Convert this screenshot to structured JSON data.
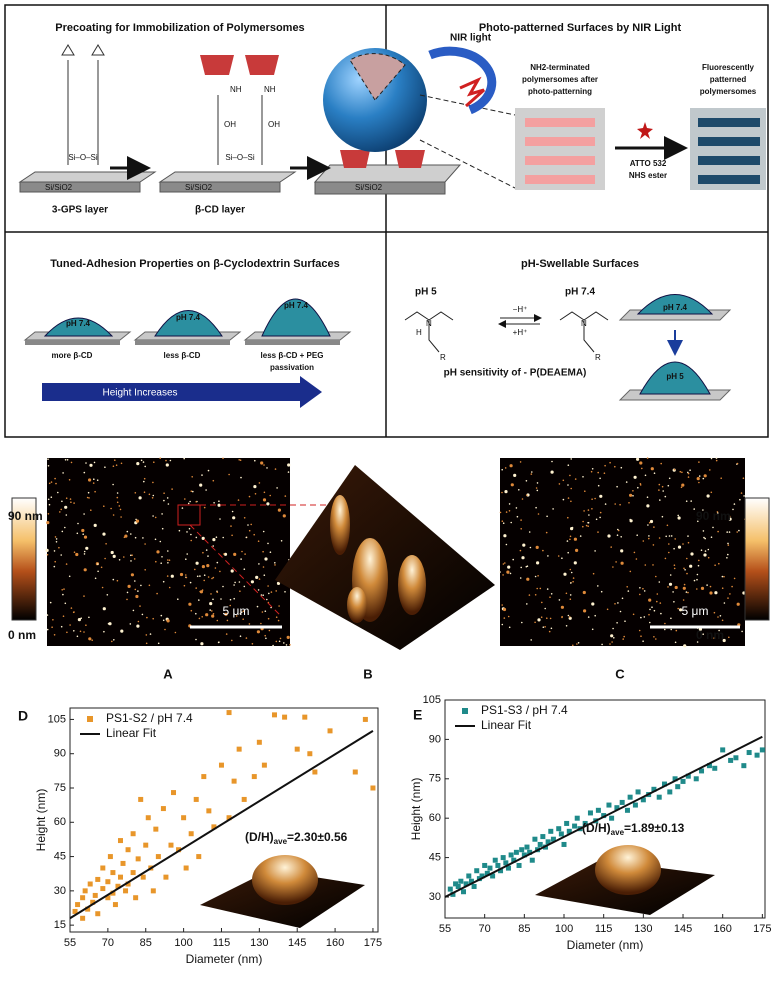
{
  "schematic": {
    "panels": [
      {
        "title": "Precoating for Immobilization of Polymersomes",
        "labels": [
          "Si/SiO2",
          "3-GPS layer",
          "Si/SiO2",
          "β-CD layer",
          "Si/SiO2",
          "Si–O–Si",
          "Si–O–Si",
          "NH",
          "NH",
          "OH",
          "OH"
        ]
      },
      {
        "title": "Photo-patterned Surfaces by NIR Light",
        "labels": [
          "NIR light",
          "NH2-terminated",
          "polymersomes after",
          "photo-patterning",
          "ATTO 532",
          "NHS ester",
          "Fluorescently",
          "patterned",
          "polymersomes"
        ]
      },
      {
        "title": "Tuned-Adhesion Properties on β-Cyclodextrin Surfaces",
        "labels": [
          "pH 7.4",
          "pH 7.4",
          "pH 7.4",
          "more β-CD",
          "less β-CD",
          "less β-CD + PEG",
          "passivation",
          "Height Increases"
        ]
      },
      {
        "title": "pH-Swellable Surfaces",
        "labels": [
          "pH 5",
          "pH 7.4",
          "−H⁺",
          "+H⁺",
          "pH sensitivity of - P(DEAEMA)",
          "pH 7.4",
          "pH 5",
          "N",
          "N",
          "H",
          "R",
          "R"
        ]
      }
    ]
  },
  "afm": {
    "colorbar_top": "90 nm",
    "colorbar_bottom": "0 nm",
    "scale_bar": "5 μm",
    "panel_labels": [
      "A",
      "B",
      "C"
    ]
  },
  "chart_data": [
    {
      "type": "scatter",
      "label": "D",
      "x_label": "Diameter (nm)",
      "y_label": "Height (nm)",
      "xlim": [
        55,
        177
      ],
      "ylim": [
        12,
        110
      ],
      "xticks": [
        55,
        70,
        85,
        100,
        115,
        130,
        145,
        160,
        175
      ],
      "yticks": [
        15,
        30,
        45,
        60,
        75,
        90,
        105
      ],
      "annotation": {
        "text": "(D/H)",
        "sub": "ave",
        "suffix": "=2.30±0.56"
      },
      "series": [
        {
          "name": "PS1-S2 / pH 7.4",
          "color": "#e8962a",
          "kind": "points",
          "x": [
            57,
            58,
            60,
            60,
            61,
            62,
            63,
            64,
            65,
            66,
            66,
            68,
            68,
            70,
            70,
            71,
            72,
            72,
            73,
            74,
            75,
            75,
            76,
            77,
            78,
            78,
            80,
            80,
            81,
            82,
            83,
            84,
            85,
            86,
            87,
            88,
            89,
            90,
            92,
            93,
            95,
            96,
            98,
            100,
            101,
            103,
            105,
            106,
            108,
            110,
            112,
            115,
            118,
            120,
            122,
            124,
            128,
            130,
            132,
            136,
            140,
            145,
            150,
            152,
            158,
            168,
            172,
            175,
            148,
            118
          ],
          "values": [
            21,
            24,
            18,
            27,
            30,
            22,
            33,
            25,
            28,
            20,
            35,
            31,
            40,
            27,
            34,
            45,
            29,
            38,
            24,
            32,
            52,
            36,
            42,
            30,
            48,
            33,
            38,
            55,
            27,
            44,
            70,
            36,
            50,
            62,
            40,
            30,
            57,
            45,
            66,
            36,
            50,
            73,
            48,
            62,
            40,
            55,
            70,
            45,
            80,
            65,
            58,
            85,
            62,
            78,
            92,
            70,
            80,
            95,
            85,
            107,
            106,
            92,
            90,
            82,
            100,
            82,
            105,
            75,
            106,
            108
          ]
        },
        {
          "name": "Linear Fit",
          "color": "#111111",
          "kind": "line",
          "x": [
            55,
            175
          ],
          "values": [
            18,
            100
          ]
        }
      ]
    },
    {
      "type": "scatter",
      "label": "E",
      "x_label": "Diameter (nm)",
      "y_label": "Height (nm)",
      "xlim": [
        55,
        176
      ],
      "ylim": [
        22,
        105
      ],
      "xticks": [
        55,
        70,
        85,
        100,
        115,
        130,
        145,
        160,
        175
      ],
      "yticks": [
        30,
        45,
        60,
        75,
        90,
        105
      ],
      "annotation": {
        "text": "(D/H)",
        "sub": "ave",
        "suffix": "=1.89±0.13"
      },
      "series": [
        {
          "name": "PS1-S3 / pH 7.4",
          "color": "#1f8a8a",
          "kind": "points",
          "x": [
            57,
            58,
            59,
            60,
            61,
            62,
            63,
            64,
            65,
            66,
            67,
            68,
            69,
            70,
            71,
            72,
            73,
            74,
            75,
            76,
            77,
            78,
            79,
            80,
            81,
            82,
            83,
            84,
            85,
            86,
            87,
            88,
            89,
            90,
            91,
            92,
            93,
            94,
            95,
            96,
            98,
            99,
            100,
            101,
            102,
            104,
            105,
            106,
            108,
            110,
            112,
            113,
            115,
            117,
            118,
            120,
            122,
            124,
            125,
            127,
            128,
            130,
            132,
            134,
            136,
            138,
            140,
            142,
            143,
            145,
            147,
            150,
            152,
            155,
            157,
            160,
            163,
            165,
            168,
            170,
            173,
            175
          ],
          "values": [
            33,
            31,
            35,
            34,
            36,
            32,
            35,
            38,
            36,
            34,
            40,
            37,
            38,
            42,
            39,
            41,
            38,
            44,
            42,
            40,
            45,
            43,
            41,
            46,
            44,
            47,
            42,
            48,
            46,
            49,
            47,
            44,
            52,
            48,
            50,
            53,
            49,
            51,
            55,
            52,
            56,
            54,
            50,
            58,
            55,
            57,
            60,
            56,
            58,
            62,
            59,
            63,
            61,
            65,
            60,
            64,
            66,
            63,
            68,
            65,
            70,
            67,
            69,
            71,
            68,
            73,
            70,
            75,
            72,
            74,
            76,
            75,
            78,
            80,
            79,
            86,
            82,
            83,
            80,
            85,
            84,
            86
          ]
        },
        {
          "name": "Linear Fit",
          "color": "#111111",
          "kind": "line",
          "x": [
            55,
            175
          ],
          "values": [
            30,
            91
          ]
        }
      ]
    }
  ]
}
